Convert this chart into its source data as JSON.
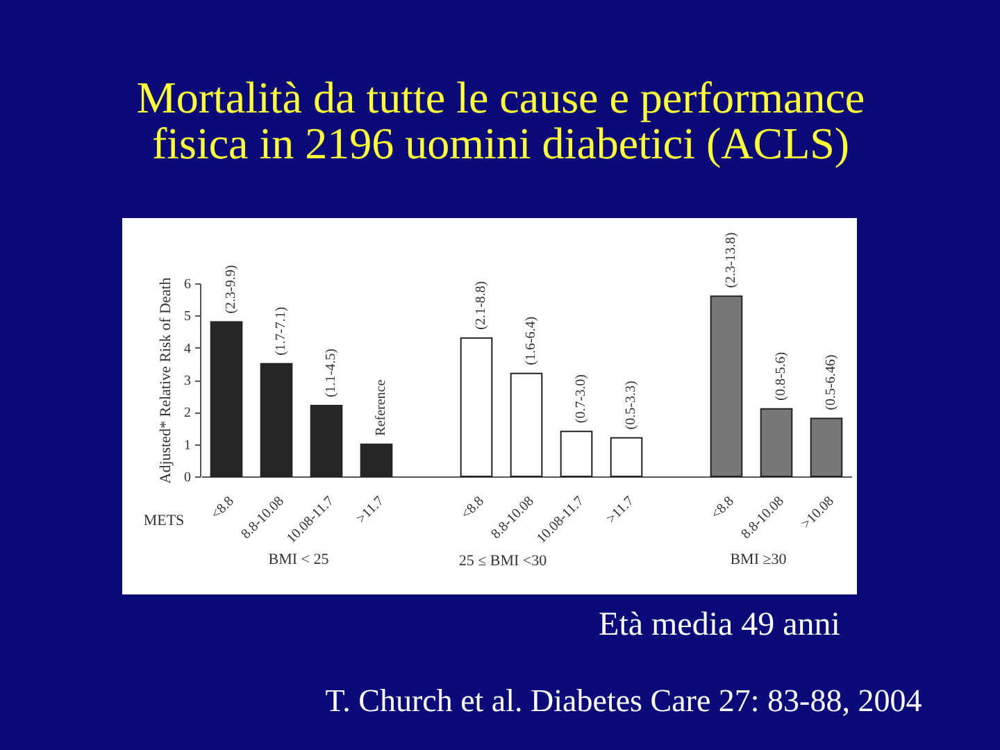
{
  "chart_data": {
    "type": "bar",
    "title": "Mortalità da tutte le cause e performance fisica in 2196 uomini diabetici (ACLS)",
    "xlabel": "METS",
    "ylabel": "Adjusted* Relative Risk of Death",
    "categories": [
      "<8.8",
      "8.8-10.08",
      "10.08-11.7",
      ">11.7",
      null,
      "<8.8",
      "8.8-10.08",
      "10.08-11.7",
      ">11.7",
      null,
      "<8.8",
      "8.8-10.08",
      ">10.08"
    ],
    "values": [
      4.8,
      3.5,
      2.2,
      1.0,
      null,
      4.3,
      3.2,
      1.4,
      1.2,
      null,
      5.6,
      2.1,
      1.8
    ],
    "colors": [
      "#262626",
      "#262626",
      "#262626",
      "#262626",
      null,
      "#ffffff",
      "#ffffff",
      "#ffffff",
      "#ffffff",
      null,
      "#777777",
      "#777777",
      "#777777"
    ],
    "value_labels": [
      "(2.3-9.9)",
      "(1.7-7.1)",
      "(1.1-4.5)",
      "Reference",
      null,
      "(2.1-8.8)",
      "(1.6-6.4)",
      "(0.7-3.0)",
      "(0.5-3.3)",
      null,
      "(2.3-13.8)",
      "(0.8-5.6)",
      "(0.5-6.46)"
    ],
    "ylim": [
      0,
      6
    ],
    "yticks": [
      0,
      1,
      2,
      3,
      4,
      5,
      6
    ],
    "annotations": [
      "BMI < 25",
      "25 ≤ BMI <30",
      "BMI ≥30",
      "Età media 49 anni",
      "T. Church et al. Diabetes Care 27: 83-88, 2004"
    ]
  }
}
